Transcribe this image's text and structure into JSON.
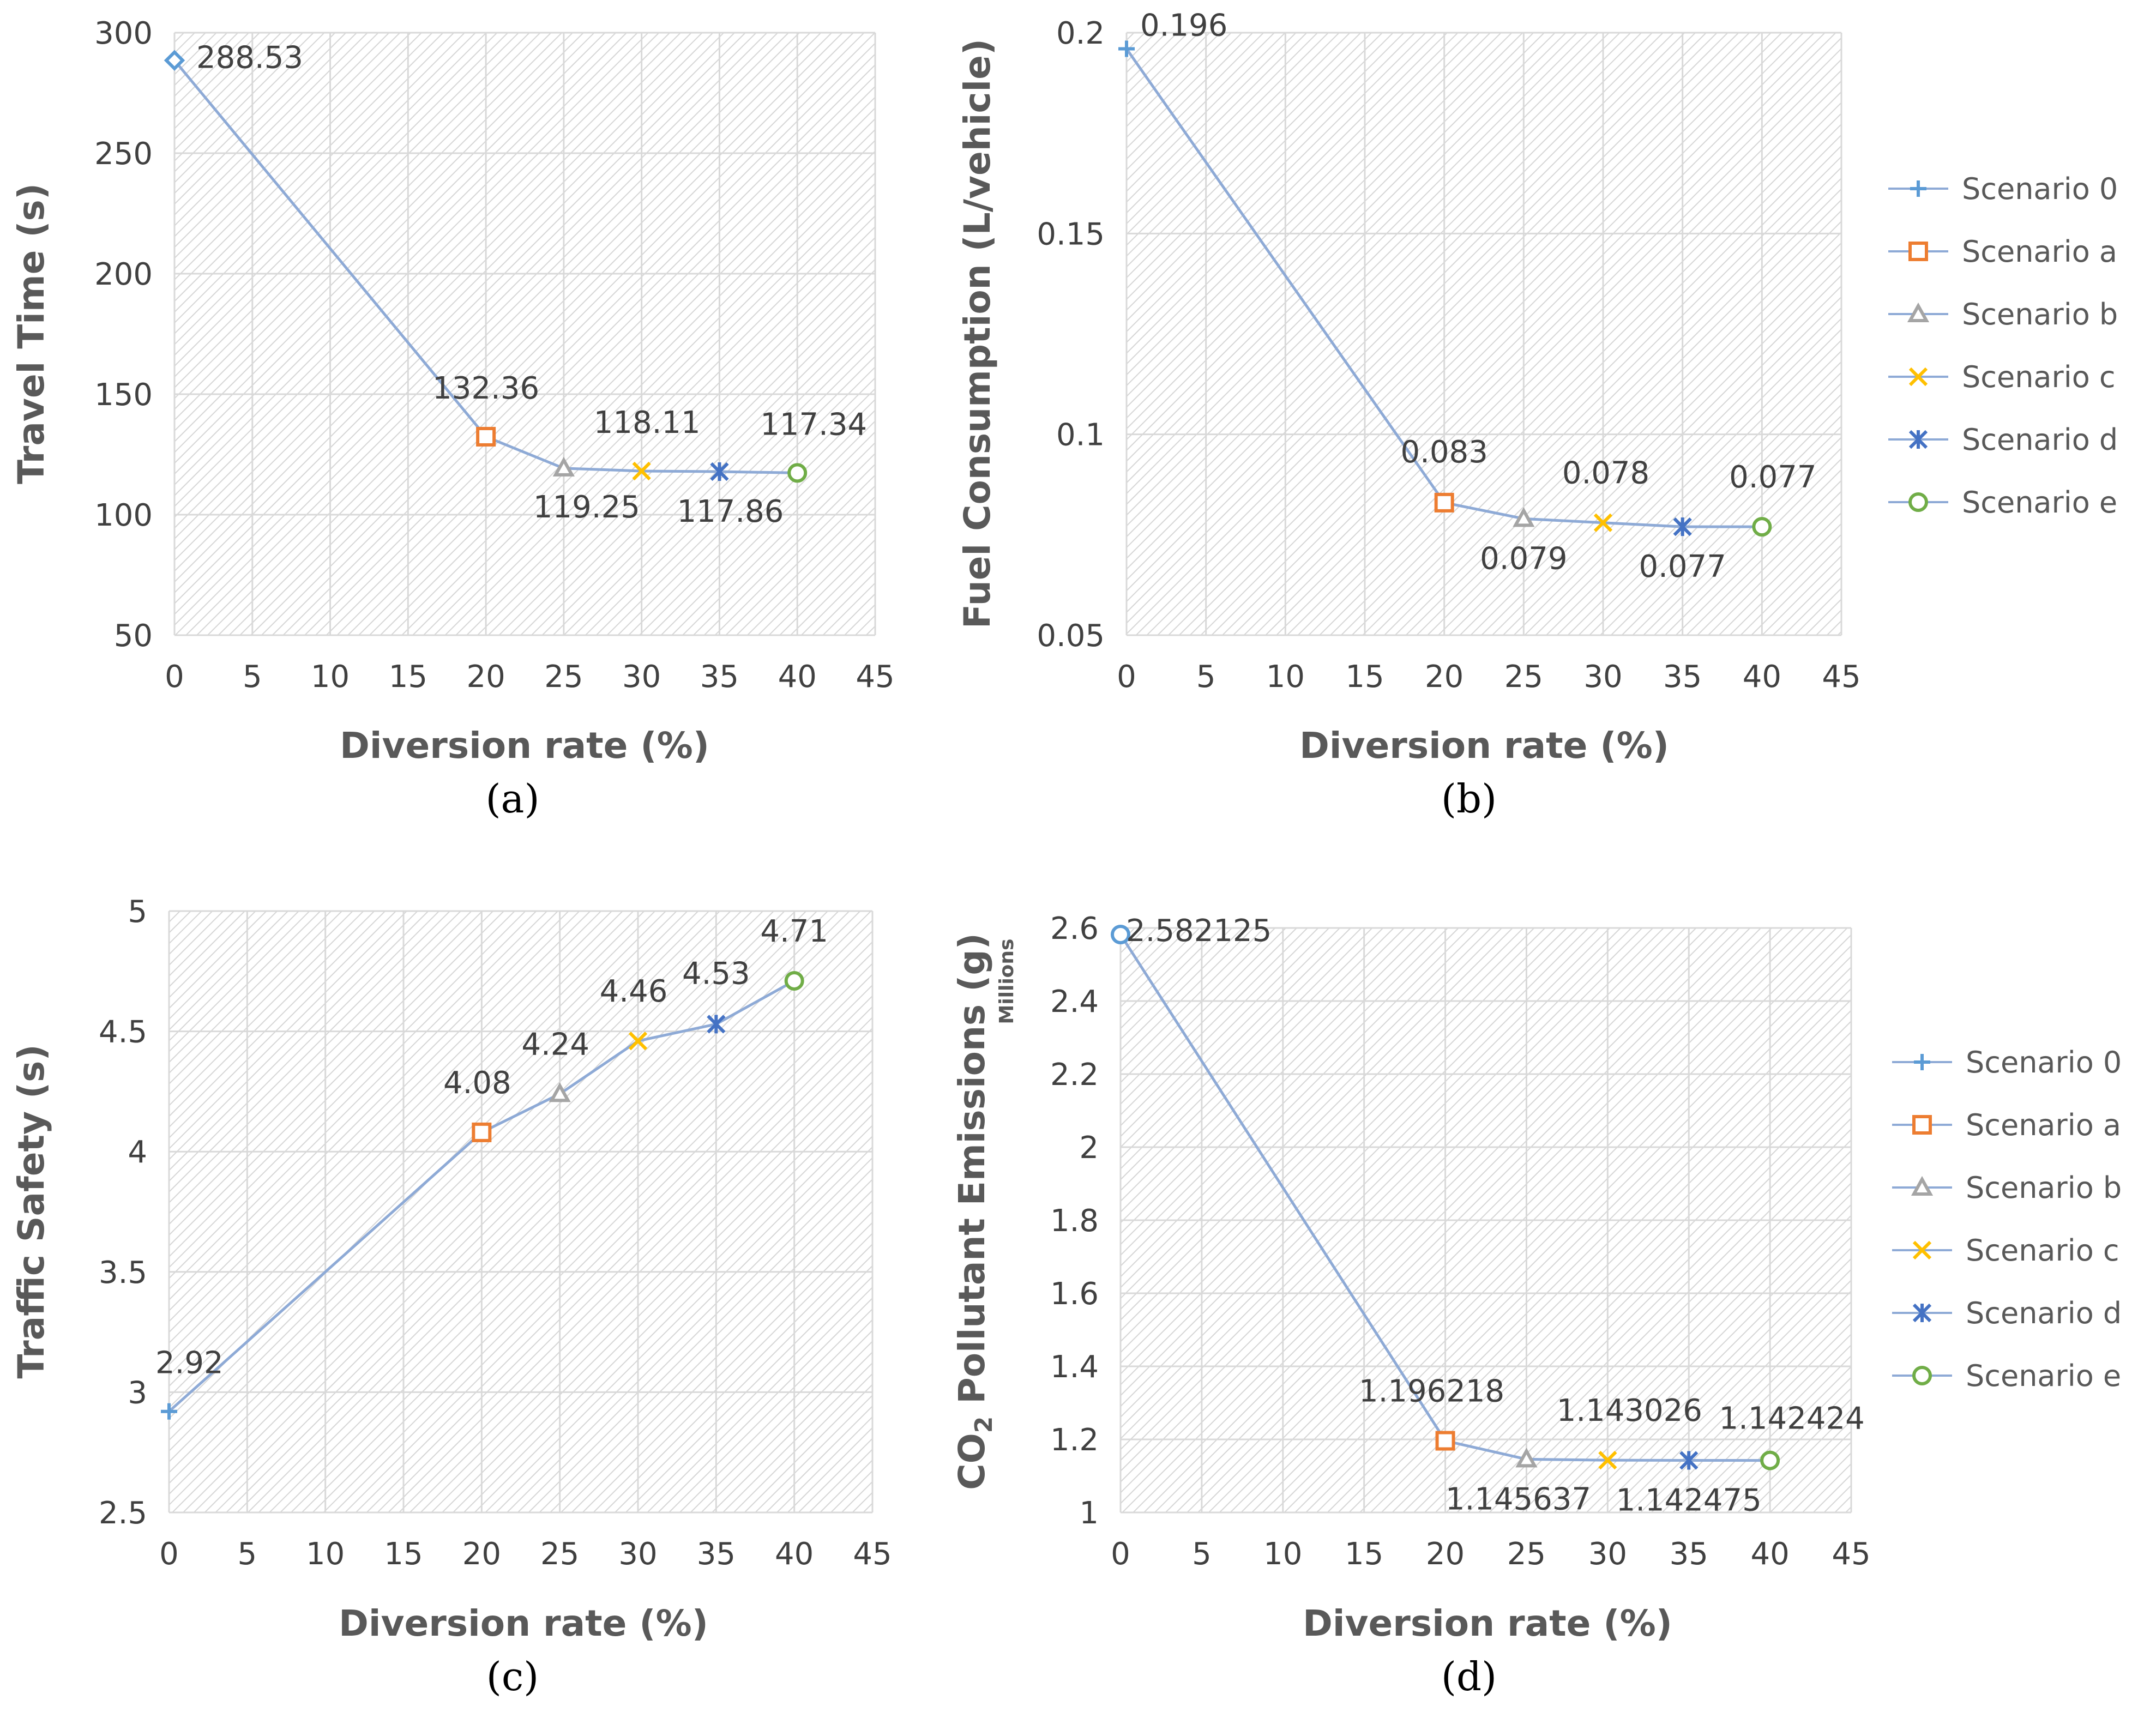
{
  "figure": {
    "series_names": [
      "Scenario 0",
      "Scenario a",
      "Scenario b",
      "Scenario c",
      "Scenario d",
      "Scenario e"
    ],
    "colors": {
      "line": "#8eaad6",
      "grid": "#d9d9d9",
      "hatch": "#d4d4d4",
      "scenario_0": "#5b9bd5",
      "scenario_a": "#ed7d31",
      "scenario_b": "#a5a5a5",
      "scenario_c": "#ffc000",
      "scenario_d": "#4472c4",
      "scenario_e": "#70ad47"
    }
  },
  "chart_data": [
    {
      "id": "a",
      "type": "line",
      "caption": "(a)",
      "ylabel": "Travel Time (s)",
      "xlabel": "Diversion rate (%)",
      "xlim": [
        0,
        45
      ],
      "xticks": [
        "0",
        "5",
        "10",
        "15",
        "20",
        "25",
        "30",
        "35",
        "40",
        "45"
      ],
      "ylim": [
        50,
        300
      ],
      "yticks": [
        "50",
        "100",
        "150",
        "200",
        "250",
        "300"
      ],
      "x": [
        0,
        20,
        25,
        30,
        35,
        40
      ],
      "y": [
        288.53,
        132.36,
        119.25,
        118.11,
        117.86,
        117.34
      ],
      "labels": [
        "288.53",
        "132.36",
        "119.25",
        "118.11",
        "117.86",
        "117.34"
      ],
      "markers": [
        "diamond",
        "square",
        "triangle",
        "x",
        "star",
        "circle"
      ],
      "legend": false
    },
    {
      "id": "b",
      "type": "line",
      "caption": "(b)",
      "ylabel": "Fuel Consumption (L/vehicle)",
      "xlabel": "Diversion rate (%)",
      "xlim": [
        0,
        45
      ],
      "xticks": [
        "0",
        "5",
        "10",
        "15",
        "20",
        "25",
        "30",
        "35",
        "40",
        "45"
      ],
      "ylim": [
        0.05,
        0.2
      ],
      "yticks": [
        "0.05",
        "0.1",
        "0.15",
        "0.2"
      ],
      "x": [
        0,
        20,
        25,
        30,
        35,
        40
      ],
      "y": [
        0.196,
        0.083,
        0.079,
        0.078,
        0.077,
        0.077
      ],
      "labels": [
        "0.196",
        "0.083",
        "0.079",
        "0.078",
        "0.077",
        "0.077"
      ],
      "markers": [
        "plus",
        "square",
        "triangle",
        "x",
        "star",
        "circle"
      ],
      "legend": true
    },
    {
      "id": "c",
      "type": "line",
      "caption": "(c)",
      "ylabel": "Traffic Safety (s)",
      "xlabel": "Diversion rate (%)",
      "xlim": [
        0,
        45
      ],
      "xticks": [
        "0",
        "5",
        "10",
        "15",
        "20",
        "25",
        "30",
        "35",
        "40",
        "45"
      ],
      "ylim": [
        2.5,
        5
      ],
      "yticks": [
        "2.5",
        "3",
        "3.5",
        "4",
        "4.5",
        "5"
      ],
      "x": [
        0,
        20,
        25,
        30,
        35,
        40
      ],
      "y": [
        2.92,
        4.08,
        4.24,
        4.46,
        4.53,
        4.71
      ],
      "labels": [
        "2.92",
        "4.08",
        "4.24",
        "4.46",
        "4.53",
        "4.71"
      ],
      "markers": [
        "plus",
        "square",
        "triangle",
        "x",
        "star",
        "circle"
      ],
      "legend": false
    },
    {
      "id": "d",
      "type": "line",
      "caption": "(d)",
      "ylabel_prefix": "CO",
      "ylabel_sub": "2",
      "ylabel_suffix": " Pollutant Emissions (g)",
      "y_unit_note": "Millions",
      "xlabel": "Diversion rate (%)",
      "xlim": [
        0,
        45
      ],
      "xticks": [
        "0",
        "5",
        "10",
        "15",
        "20",
        "25",
        "30",
        "35",
        "40",
        "45"
      ],
      "ylim": [
        1,
        2.6
      ],
      "yticks": [
        "1",
        "1.2",
        "1.4",
        "1.6",
        "1.8",
        "2",
        "2.2",
        "2.4",
        "2.6"
      ],
      "x": [
        0,
        20,
        25,
        30,
        35,
        40
      ],
      "y": [
        2.582125,
        1.196218,
        1.145637,
        1.143026,
        1.142475,
        1.142424
      ],
      "labels": [
        "2.582125",
        "1.196218",
        "1.145637",
        "1.143026",
        "1.142475",
        "1.142424"
      ],
      "markers": [
        "circle0",
        "square",
        "triangle",
        "x",
        "star",
        "circle"
      ],
      "legend": true
    }
  ]
}
